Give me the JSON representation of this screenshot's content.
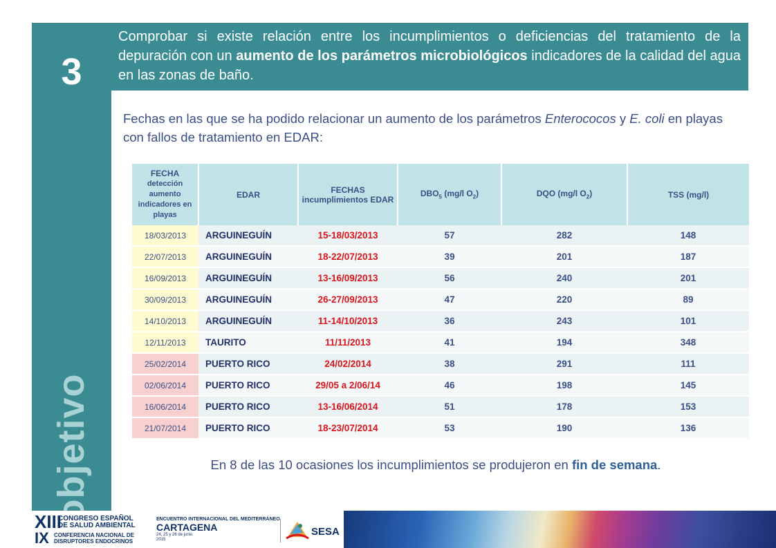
{
  "objective": {
    "number": "3",
    "word": "objetivo"
  },
  "header": {
    "text_before": "Comprobar si existe relación entre los incumplimientos o deficiencias del tratamiento de la depuración con un ",
    "text_bold": "aumento de los parámetros microbiológicos",
    "text_after": " indicadores de la calidad del agua en las zonas de baño."
  },
  "intro": {
    "part1": "Fechas en las que se ha podido relacionar un aumento de los parámetros ",
    "term1": "Enterococos",
    "part2": " y ",
    "term2": "E. coli",
    "part3": " en playas con fallos de tratamiento en EDAR:"
  },
  "table": {
    "headers": {
      "fecha_title": "FECHA",
      "fecha_sub": "detección aumento indicadores en playas",
      "edar": "EDAR",
      "fechas_incumplimientos": "FECHAS incumplimientos EDAR",
      "dbo_prefix": "DBO",
      "dbo_sub": "5",
      "dbo_unit": " (mg/l O",
      "dbo_unit_sub": "2",
      "dbo_close": ")",
      "dqo_prefix": "DQO (mg/l O",
      "dqo_sub": "2",
      "dqo_close": ")",
      "tss": "TSS (mg/l)"
    },
    "rows": [
      {
        "fecha": "18/03/2013",
        "edar": "ARGUINEGUÍN",
        "fechas": "15-18/03/2013",
        "dbo": "57",
        "dqo": "282",
        "tss": "148",
        "highlight": "yellow"
      },
      {
        "fecha": "22/07/2013",
        "edar": "ARGUINEGUÍN",
        "fechas": "18-22/07/2013",
        "dbo": "39",
        "dqo": "201",
        "tss": "187",
        "highlight": "yellow"
      },
      {
        "fecha": "16/09/2013",
        "edar": "ARGUINEGUÍN",
        "fechas": "13-16/09/2013",
        "dbo": "56",
        "dqo": "240",
        "tss": "201",
        "highlight": "yellow"
      },
      {
        "fecha": "30/09/2013",
        "edar": "ARGUINEGUÍN",
        "fechas": "26-27/09/2013",
        "dbo": "47",
        "dqo": "220",
        "tss": "89",
        "highlight": "yellow"
      },
      {
        "fecha": "14/10/2013",
        "edar": "ARGUINEGUÍN",
        "fechas": "11-14/10/2013",
        "dbo": "36",
        "dqo": "243",
        "tss": "101",
        "highlight": "yellow"
      },
      {
        "fecha": "12/11/2013",
        "edar": "TAURITO",
        "fechas": "11/11/2013",
        "dbo": "41",
        "dqo": "194",
        "tss": "348",
        "highlight": "yellow"
      },
      {
        "fecha": "25/02/2014",
        "edar": "PUERTO RICO",
        "fechas": "24/02/2014",
        "dbo": "38",
        "dqo": "291",
        "tss": "111",
        "highlight": "pink"
      },
      {
        "fecha": "02/06/2014",
        "edar": "PUERTO RICO",
        "fechas": "29/05 a 2/06/14",
        "dbo": "46",
        "dqo": "198",
        "tss": "145",
        "highlight": "pink"
      },
      {
        "fecha": "16/06/2014",
        "edar": "PUERTO RICO",
        "fechas": "13-16/06/2014",
        "dbo": "51",
        "dqo": "178",
        "tss": "153",
        "highlight": "pink"
      },
      {
        "fecha": "21/07/2014",
        "edar": "PUERTO RICO",
        "fechas": "18-23/07/2014",
        "dbo": "53",
        "dqo": "190",
        "tss": "136",
        "highlight": "pink"
      }
    ]
  },
  "summary": {
    "text_before": "En 8 de las 10 ocasiones los incumplimientos se produjeron en ",
    "text_bold": "fin de semana",
    "text_after": "."
  },
  "footer": {
    "logo1_roman1": "XIII",
    "logo1_line1": "CONGRESO ESPAÑOL",
    "logo1_line2": "DE SALUD AMBIENTAL",
    "logo1_roman2": "IX",
    "logo1_line3": "CONFERENCIA NACIONAL DE",
    "logo1_line4": "DISRUPTORES ENDOCRINOS",
    "logo2_line1": "ENCUENTRO INTERNACIONAL DEL MEDITERRÁNEO",
    "logo2_city": "CARTAGENA",
    "logo2_dates": "24, 25 y 26 de junio",
    "logo2_year": "2015",
    "logo3_text": "SESA",
    "colors": {
      "teal": "#3b8b92",
      "navy": "#0e3166",
      "red": "#d9141a"
    }
  }
}
